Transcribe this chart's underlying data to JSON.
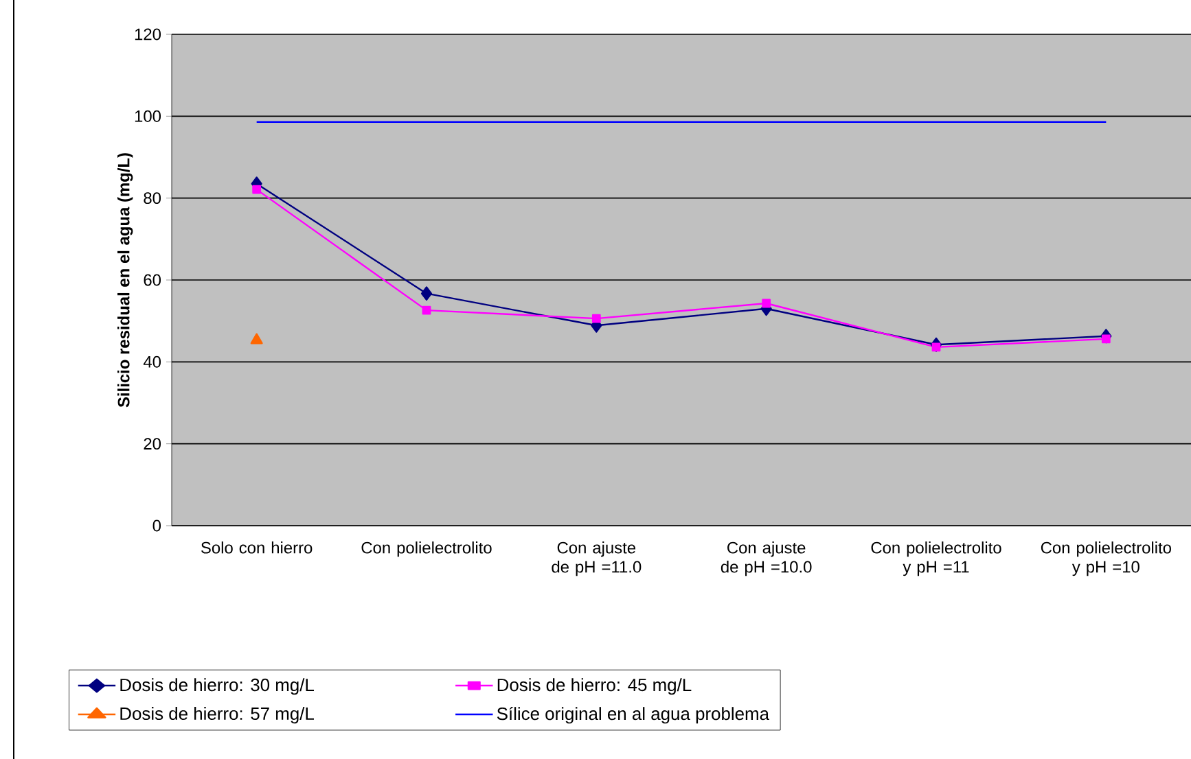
{
  "chart_data": {
    "type": "line",
    "ylabel": "Silicio residual en el agua (mg/L)",
    "categories": [
      "Solo con hierro",
      "Con polielectrolito",
      "Con ajuste de pH =11.0",
      "Con ajuste de pH =10.0",
      "Con polielectrolito y pH =11",
      "Con polielectrolito y pH =10"
    ],
    "series": [
      {
        "name": "Dosis de hierro: 30 mg/L",
        "color": "#000080",
        "marker": "diamond",
        "values": [
          83.5,
          56.7,
          48.9,
          53,
          44.2,
          46.3
        ]
      },
      {
        "name": "Dosis de hierro: 45 mg/L",
        "color": "#ff00ff",
        "marker": "square",
        "values": [
          82.1,
          52.6,
          50.6,
          54.3,
          43.6,
          45.6
        ]
      },
      {
        "name": "Dosis de hierro: 57 mg/L",
        "color": "#ff6600",
        "marker": "triangle",
        "values": [
          45.3,
          null,
          null,
          null,
          null,
          null
        ]
      },
      {
        "name": "Sílice original en al agua problema",
        "color": "#0000ff",
        "marker": "none",
        "values": [
          98.6,
          98.6,
          98.6,
          98.6,
          98.6,
          98.6
        ]
      }
    ],
    "ylim": [
      0,
      120
    ],
    "yticks": [
      0,
      20,
      40,
      60,
      80,
      100,
      120
    ],
    "grid": "y",
    "legend": "bottom"
  }
}
